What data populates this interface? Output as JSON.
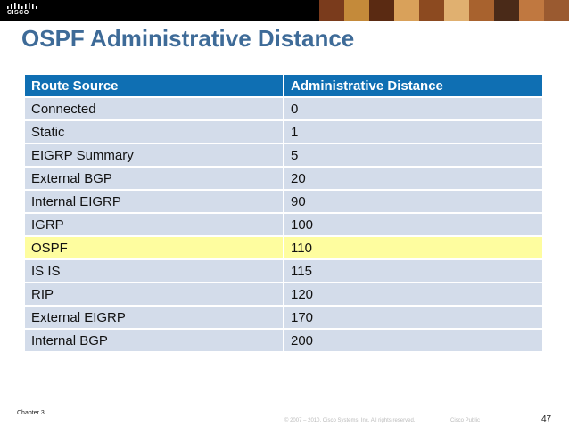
{
  "header": {
    "logo_text": "CISCO",
    "logo_icon": "cisco-bridge-logo-icon"
  },
  "slide": {
    "title": "OSPF Administrative Distance"
  },
  "table": {
    "headers": [
      "Route Source",
      "Administrative Distance"
    ],
    "rows": [
      {
        "source": "Connected",
        "distance": "0",
        "highlight": false
      },
      {
        "source": "Static",
        "distance": "1",
        "highlight": false
      },
      {
        "source": "EIGRP Summary",
        "distance": "5",
        "highlight": false
      },
      {
        "source": "External BGP",
        "distance": "20",
        "highlight": false
      },
      {
        "source": "Internal EIGRP",
        "distance": "90",
        "highlight": false
      },
      {
        "source": "IGRP",
        "distance": "100",
        "highlight": false
      },
      {
        "source": "OSPF",
        "distance": "110",
        "highlight": true
      },
      {
        "source": "IS IS",
        "distance": "115",
        "highlight": false
      },
      {
        "source": "RIP",
        "distance": "120",
        "highlight": false
      },
      {
        "source": "External EIGRP",
        "distance": "170",
        "highlight": false
      },
      {
        "source": "Internal BGP",
        "distance": "200",
        "highlight": false
      }
    ]
  },
  "footer": {
    "chapter": "Chapter 3",
    "copyright": "© 2007 – 2010, Cisco Systems, Inc. All rights reserved.",
    "classification": "Cisco Public",
    "page_number": "47"
  },
  "colors": {
    "title": "#3e6b98",
    "header_bg": "#0f6fb3",
    "row_bg": "#d3dcea",
    "highlight_bg": "#fefd9f"
  }
}
